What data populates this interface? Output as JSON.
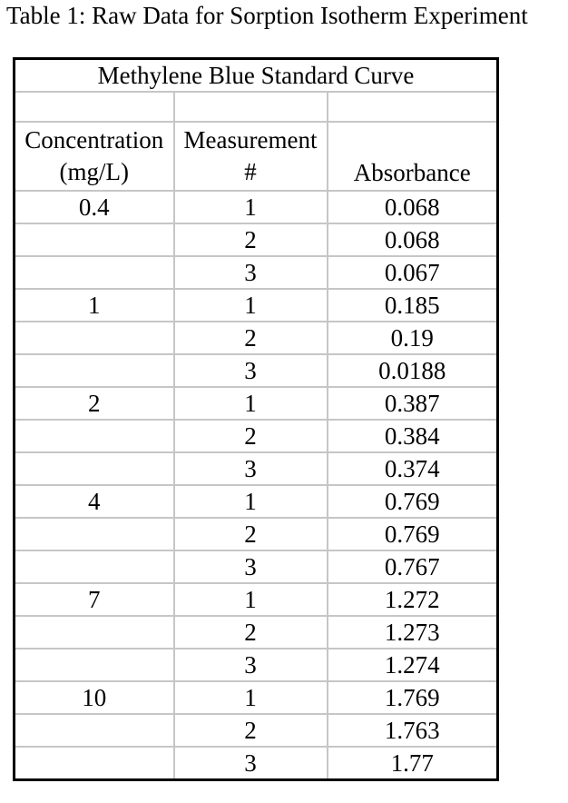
{
  "caption": "Table 1: Raw Data for Sorption Isotherm Experiment",
  "table": {
    "title": "Methylene Blue Standard Curve",
    "headers": {
      "concentration_line1": "Concentration",
      "concentration_line2": "(mg/L)",
      "measurement_line1": "Measurement",
      "measurement_line2": "#",
      "absorbance": "Absorbance"
    },
    "rows": [
      {
        "c": "0.4",
        "m": "1",
        "a": "0.068"
      },
      {
        "c": "",
        "m": "2",
        "a": "0.068"
      },
      {
        "c": "",
        "m": "3",
        "a": "0.067"
      },
      {
        "c": "1",
        "m": "1",
        "a": "0.185"
      },
      {
        "c": "",
        "m": "2",
        "a": "0.19"
      },
      {
        "c": "",
        "m": "3",
        "a": "0.0188"
      },
      {
        "c": "2",
        "m": "1",
        "a": "0.387"
      },
      {
        "c": "",
        "m": "2",
        "a": "0.384"
      },
      {
        "c": "",
        "m": "3",
        "a": "0.374"
      },
      {
        "c": "4",
        "m": "1",
        "a": "0.769"
      },
      {
        "c": "",
        "m": "2",
        "a": "0.769"
      },
      {
        "c": "",
        "m": "3",
        "a": "0.767"
      },
      {
        "c": "7",
        "m": "1",
        "a": "1.272"
      },
      {
        "c": "",
        "m": "2",
        "a": "1.273"
      },
      {
        "c": "",
        "m": "3",
        "a": "1.274"
      },
      {
        "c": "10",
        "m": "1",
        "a": "1.769"
      },
      {
        "c": "",
        "m": "2",
        "a": "1.763"
      },
      {
        "c": "",
        "m": "3",
        "a": "1.77"
      }
    ]
  },
  "colors": {
    "outer_border": "#000000",
    "grid_line": "#c6c6c6",
    "text": "#000000",
    "background": "#ffffff"
  }
}
